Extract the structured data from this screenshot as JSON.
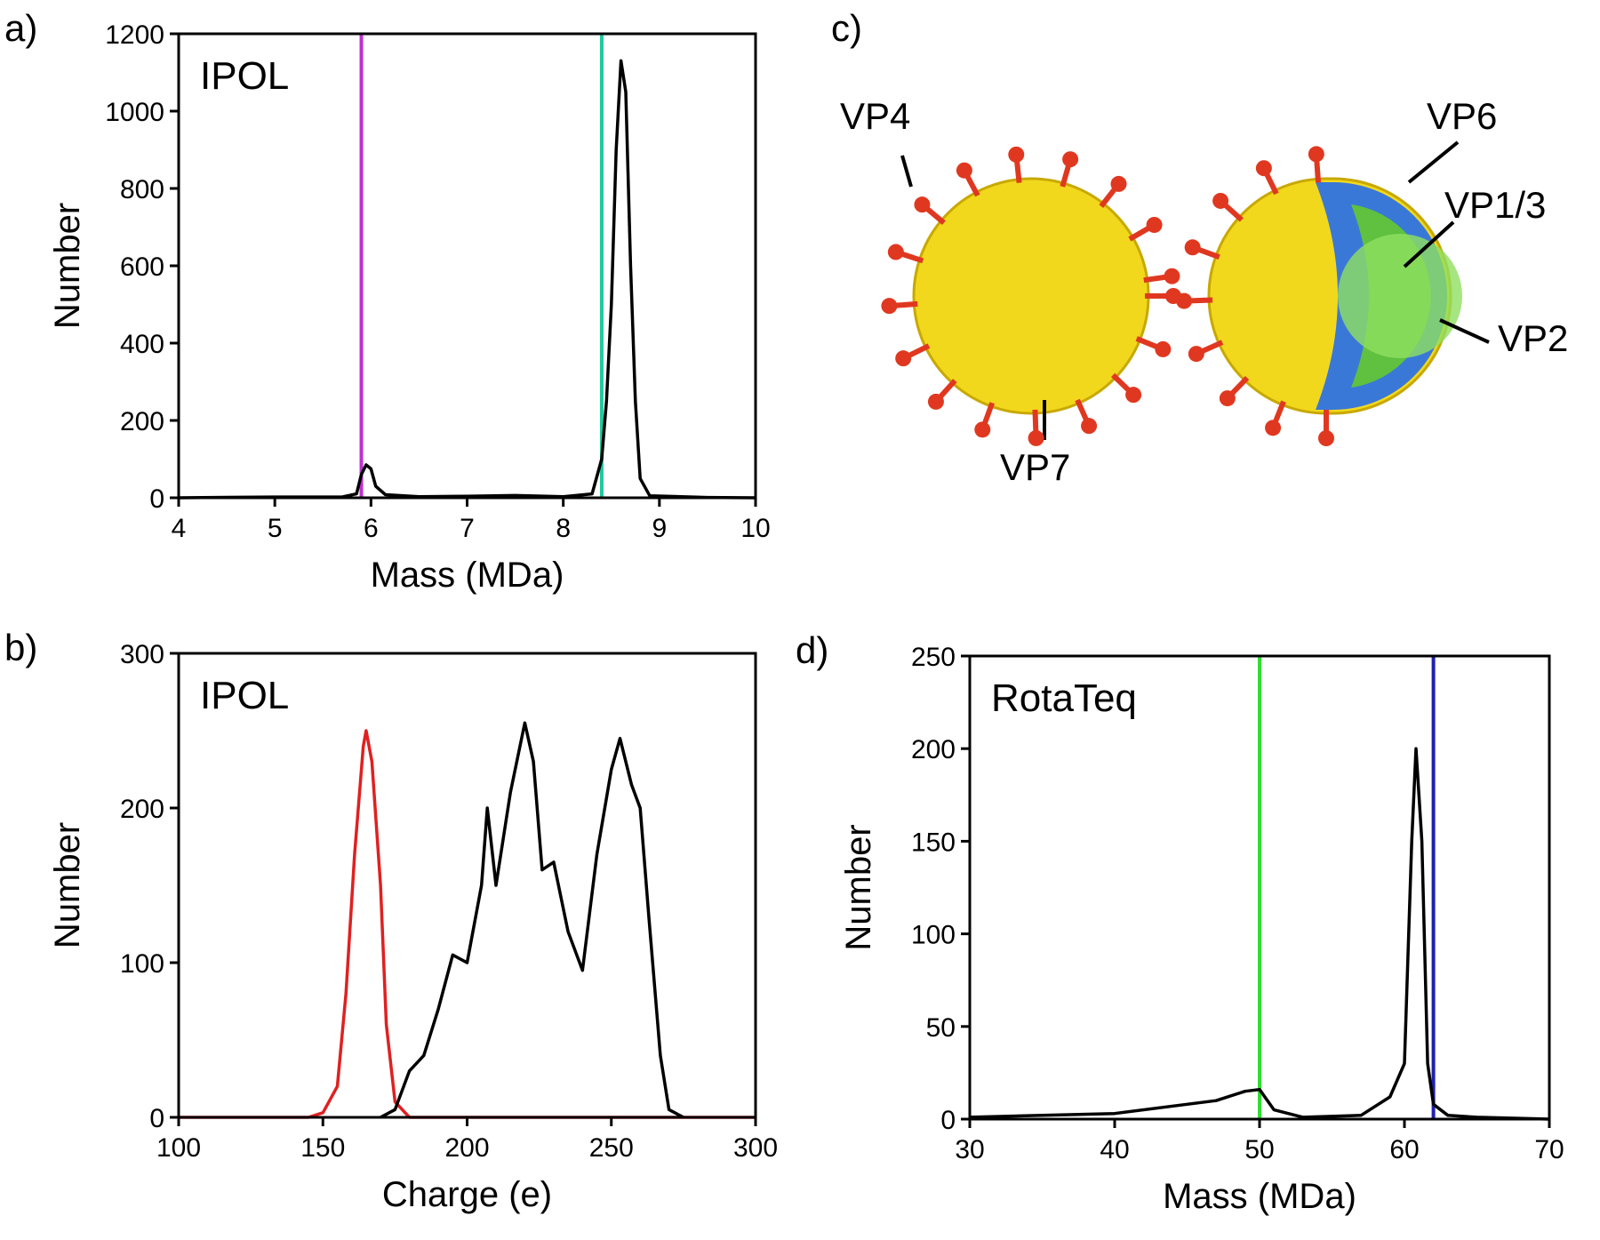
{
  "chart_data": [
    {
      "type": "line",
      "panel_label": "a)",
      "title": "IPOL",
      "x_label": "Mass (MDa)",
      "y_label": "Number",
      "xlim": [
        4,
        10
      ],
      "xticks": [
        4,
        5,
        6,
        7,
        8,
        9,
        10
      ],
      "ylim": [
        0,
        1200
      ],
      "yticks": [
        0,
        200,
        400,
        600,
        800,
        1000,
        1200
      ],
      "markers": [
        {
          "x": 5.9,
          "color": "#c030d0"
        },
        {
          "x": 8.4,
          "color": "#20c8a0"
        }
      ],
      "series": [
        {
          "color": "#000000",
          "x": [
            4,
            5.0,
            5.7,
            5.85,
            5.9,
            5.95,
            6.0,
            6.05,
            6.15,
            6.5,
            7.0,
            7.5,
            8.0,
            8.3,
            8.4,
            8.45,
            8.5,
            8.55,
            8.6,
            8.65,
            8.7,
            8.75,
            8.8,
            8.9,
            9.5,
            10
          ],
          "values": [
            0,
            2,
            2,
            10,
            60,
            85,
            75,
            30,
            8,
            3,
            4,
            6,
            3,
            10,
            100,
            250,
            500,
            900,
            1130,
            1050,
            600,
            250,
            50,
            5,
            1,
            0
          ]
        }
      ]
    },
    {
      "type": "line",
      "panel_label": "b)",
      "title": "IPOL",
      "x_label": "Charge (e)",
      "y_label": "Number",
      "xlim": [
        100,
        300
      ],
      "xticks": [
        100,
        150,
        200,
        250,
        300
      ],
      "ylim": [
        0,
        300
      ],
      "yticks": [
        0,
        100,
        200,
        300
      ],
      "markers": [],
      "series": [
        {
          "color": "#e02020",
          "x": [
            100,
            145,
            150,
            155,
            158,
            161,
            164,
            165,
            167,
            170,
            172,
            175,
            180,
            300
          ],
          "values": [
            0,
            0,
            3,
            20,
            80,
            170,
            240,
            250,
            230,
            150,
            60,
            10,
            0,
            0
          ]
        },
        {
          "color": "#000000",
          "x": [
            170,
            175,
            180,
            185,
            190,
            195,
            200,
            205,
            207,
            210,
            215,
            220,
            223,
            226,
            230,
            235,
            240,
            245,
            250,
            253,
            257,
            260,
            263,
            267,
            270,
            275
          ],
          "values": [
            0,
            5,
            30,
            40,
            70,
            105,
            100,
            150,
            200,
            150,
            210,
            255,
            230,
            160,
            165,
            120,
            95,
            170,
            225,
            245,
            215,
            200,
            130,
            40,
            5,
            0
          ]
        }
      ]
    },
    {
      "type": "line",
      "panel_label": "d)",
      "title": "RotaTeq",
      "x_label": "Mass (MDa)",
      "y_label": "Number",
      "xlim": [
        30,
        70
      ],
      "xticks": [
        30,
        40,
        50,
        60,
        70
      ],
      "ylim": [
        0,
        250
      ],
      "yticks": [
        0,
        50,
        100,
        150,
        200,
        250
      ],
      "markers": [
        {
          "x": 50,
          "color": "#30e030"
        },
        {
          "x": 62,
          "color": "#2020b0"
        }
      ],
      "series": [
        {
          "color": "#000000",
          "x": [
            30,
            35,
            40,
            45,
            47,
            49,
            50,
            51,
            53,
            57,
            59,
            60,
            60.5,
            60.8,
            61.2,
            61.6,
            62,
            63,
            65,
            70
          ],
          "values": [
            1,
            2,
            3,
            8,
            10,
            15,
            16,
            5,
            1,
            2,
            12,
            30,
            150,
            200,
            150,
            30,
            8,
            2,
            1,
            0
          ]
        }
      ]
    }
  ],
  "illustration": {
    "panel_label": "c)",
    "labels": [
      "VP4",
      "VP6",
      "VP1/3",
      "VP2",
      "VP7"
    ]
  }
}
